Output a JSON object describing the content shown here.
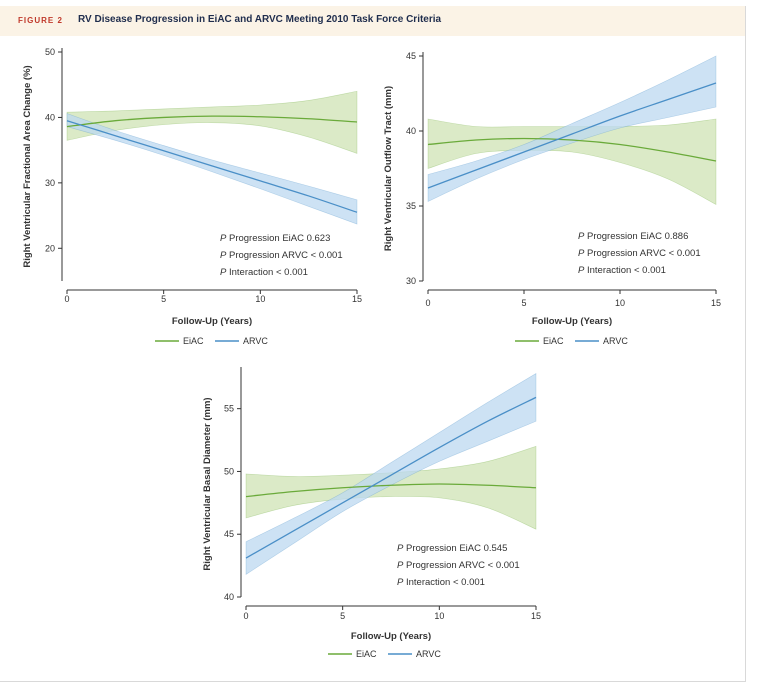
{
  "figure": {
    "label": "FIGURE 2",
    "title": "RV Disease Progression in EiAC and ARVC Meeting 2010 Task Force Criteria"
  },
  "colors": {
    "eiac_line": "#6aaa3a",
    "eiac_band": "#cfe3b4",
    "arvc_line": "#4a8fc7",
    "arvc_band": "#bcd8f0",
    "axis": "#333333"
  },
  "chart_data": [
    {
      "type": "line",
      "title": "",
      "xlabel": "Follow-Up (Years)",
      "ylabel": "Right Ventricular Fractional Area Change (%)",
      "xlim": [
        0,
        15
      ],
      "ylim": [
        15,
        50
      ],
      "xticks": [
        0,
        5,
        10,
        15
      ],
      "yticks": [
        20,
        30,
        40,
        50
      ],
      "x": [
        0,
        2.5,
        5,
        7.5,
        10,
        12.5,
        15
      ],
      "series": [
        {
          "name": "EiAC",
          "values": [
            38.6,
            39.5,
            40.0,
            40.2,
            40.1,
            39.8,
            39.3
          ],
          "lower": [
            36.5,
            38.0,
            38.9,
            39.2,
            38.7,
            37.0,
            34.5
          ],
          "upper": [
            40.8,
            41.0,
            41.3,
            41.6,
            41.9,
            42.6,
            44.0
          ]
        },
        {
          "name": "ARVC",
          "values": [
            39.5,
            37.2,
            34.9,
            32.6,
            30.3,
            28.0,
            25.5
          ],
          "lower": [
            38.6,
            36.5,
            34.2,
            31.7,
            29.1,
            26.4,
            23.7
          ],
          "upper": [
            40.6,
            38.0,
            35.7,
            33.5,
            31.5,
            29.5,
            27.4
          ]
        }
      ],
      "annotations": [
        "P Progression EiAC 0.623",
        "P Progression ARVC < 0.001",
        "P Interaction < 0.001"
      ],
      "legend": [
        "EiAC",
        "ARVC"
      ]
    },
    {
      "type": "line",
      "title": "",
      "xlabel": "Follow-Up (Years)",
      "ylabel": "Right Ventricular Outflow Tract (mm)",
      "xlim": [
        0,
        15
      ],
      "ylim": [
        30,
        45
      ],
      "xticks": [
        0,
        5,
        10,
        15
      ],
      "yticks": [
        30,
        35,
        40,
        45
      ],
      "x": [
        0,
        2.5,
        5,
        7.5,
        10,
        12.5,
        15
      ],
      "series": [
        {
          "name": "EiAC",
          "values": [
            39.1,
            39.4,
            39.5,
            39.4,
            39.1,
            38.6,
            38.0
          ],
          "lower": [
            37.5,
            38.5,
            38.7,
            38.6,
            37.9,
            36.8,
            35.1
          ],
          "upper": [
            40.8,
            40.3,
            40.3,
            40.3,
            40.3,
            40.4,
            40.8
          ]
        },
        {
          "name": "ARVC",
          "values": [
            36.2,
            37.4,
            38.6,
            39.8,
            41.0,
            42.1,
            43.2
          ],
          "lower": [
            35.3,
            36.8,
            38.1,
            39.2,
            40.2,
            40.9,
            41.6
          ],
          "upper": [
            37.1,
            38.0,
            39.1,
            40.5,
            41.9,
            43.4,
            45.0
          ]
        }
      ],
      "annotations": [
        "P Progression EiAC 0.886",
        "P Progression ARVC < 0.001",
        "P Interaction < 0.001"
      ],
      "legend": [
        "EiAC",
        "ARVC"
      ]
    },
    {
      "type": "line",
      "title": "",
      "xlabel": "Follow-Up (Years)",
      "ylabel": "Right Ventricular Basal Diameter (mm)",
      "xlim": [
        0,
        15
      ],
      "ylim": [
        40,
        58
      ],
      "xticks": [
        0,
        5,
        10,
        15
      ],
      "yticks": [
        40,
        45,
        50,
        55
      ],
      "x": [
        0,
        2.5,
        5,
        7.5,
        10,
        12.5,
        15
      ],
      "series": [
        {
          "name": "EiAC",
          "values": [
            48.0,
            48.4,
            48.7,
            48.9,
            49.0,
            48.9,
            48.7
          ],
          "lower": [
            46.3,
            47.3,
            47.8,
            48.0,
            47.9,
            47.1,
            45.4
          ],
          "upper": [
            49.8,
            49.6,
            49.7,
            49.9,
            50.2,
            50.8,
            52.0
          ]
        },
        {
          "name": "ARVC",
          "values": [
            43.1,
            45.3,
            47.5,
            49.7,
            51.9,
            54.0,
            55.9
          ],
          "lower": [
            41.8,
            44.3,
            46.8,
            48.9,
            50.8,
            52.4,
            54.0
          ],
          "upper": [
            44.4,
            46.3,
            48.3,
            50.7,
            53.1,
            55.5,
            57.8
          ]
        }
      ],
      "annotations": [
        "P Progression EiAC 0.545",
        "P Progression ARVC < 0.001",
        "P Interaction < 0.001"
      ],
      "legend": [
        "EiAC",
        "ARVC"
      ]
    }
  ]
}
